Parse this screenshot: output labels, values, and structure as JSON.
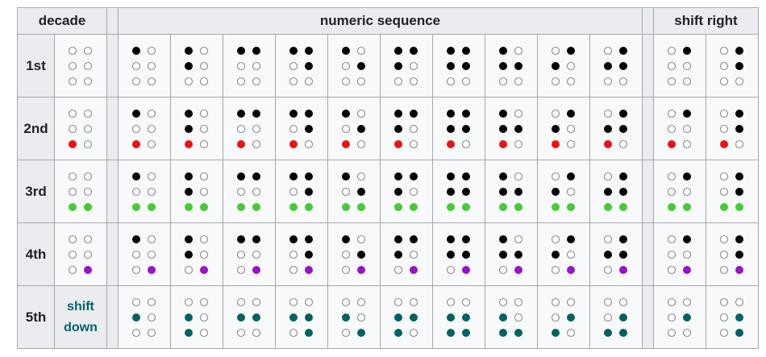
{
  "headers": {
    "decade": "decade",
    "numeric_sequence": "numeric sequence",
    "shift_right": "shift right"
  },
  "colors": {
    "filled": "#000000",
    "empty_stroke": "#8a8a8a",
    "decade_2": "#ee1111",
    "decade_3": "#44cc33",
    "decade_4": "#9911cc",
    "decade_5": "#006363",
    "header_bg": "#eaecf0",
    "cell_bg": "#f8f9fa",
    "border": "#a2a9b1"
  },
  "numeric_sequence": [
    {
      "pattern": "1"
    },
    {
      "pattern": "12"
    },
    {
      "pattern": "14"
    },
    {
      "pattern": "145"
    },
    {
      "pattern": "15"
    },
    {
      "pattern": "124"
    },
    {
      "pattern": "1245"
    },
    {
      "pattern": "125"
    },
    {
      "pattern": "24"
    },
    {
      "pattern": "245"
    }
  ],
  "shift_right_sequence": [
    {
      "pattern": "4"
    },
    {
      "pattern": "45"
    }
  ],
  "decades": [
    {
      "label": "1st",
      "marker_dots": "",
      "marker_color": ""
    },
    {
      "label": "2nd",
      "marker_dots": "3",
      "marker_color": "#ee1111"
    },
    {
      "label": "3rd",
      "marker_dots": "36",
      "marker_color": "#44cc33"
    },
    {
      "label": "4th",
      "marker_dots": "6",
      "marker_color": "#9911cc"
    },
    {
      "label": "5th",
      "shift_label_1": "shift",
      "shift_label_2": "down",
      "marker_dots": "",
      "marker_color": "#006363",
      "shift_down": true
    }
  ]
}
